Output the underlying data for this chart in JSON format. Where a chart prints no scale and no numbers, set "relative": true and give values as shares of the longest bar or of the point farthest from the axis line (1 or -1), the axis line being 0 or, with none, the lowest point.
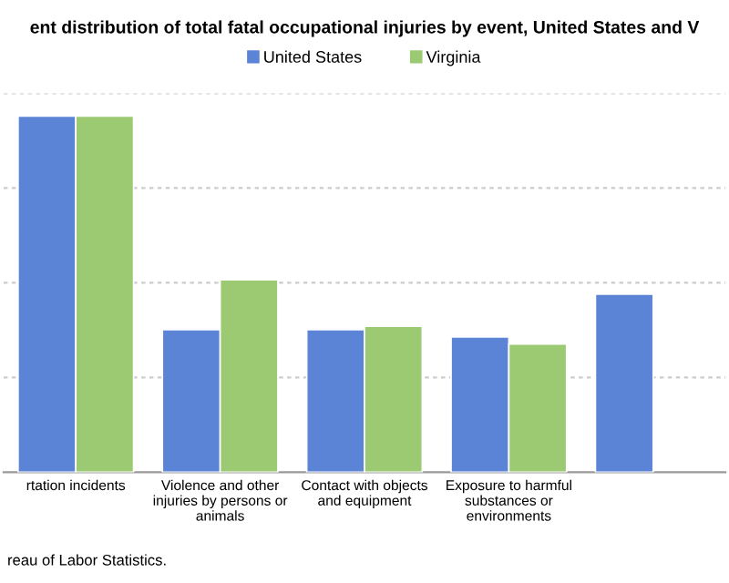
{
  "chart_data": {
    "type": "bar",
    "title": "ent distribution of total fatal occupational injuries by event, United States and V",
    "categories": [
      "rtation incidents",
      "Violence and other\ninjuries by persons or\nanimals",
      "Contact with objects\nand equipment",
      "Exposure to harmful\nsubstances or\nenvironments",
      null
    ],
    "series": [
      {
        "name": "United States",
        "color": "#5b84d6",
        "values": [
          1,
          0.4,
          0.4,
          0.38,
          0.5
        ]
      },
      {
        "name": "Virginia",
        "color": "#9bca73",
        "values": [
          1,
          0.54,
          0.41,
          0.36,
          null
        ]
      }
    ],
    "relative": true,
    "grid": "y",
    "legend": "top",
    "annotations": [
      "reau of Labor Statistics."
    ]
  }
}
